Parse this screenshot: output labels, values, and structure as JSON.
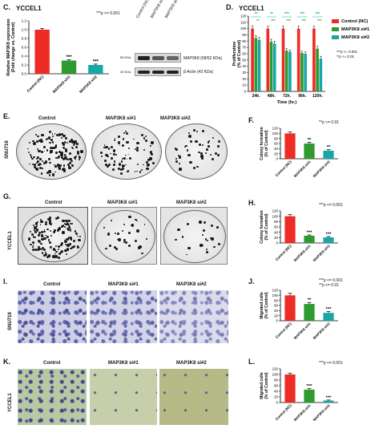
{
  "panels": {
    "c": {
      "letter": "C.",
      "title": "YCCEL1",
      "pnote": "***p <= 0.001",
      "band1": "MAP3K8 (58/52 KDa)",
      "band2": "β-Actin (42 KDa)",
      "kda1": "55 KDa",
      "kda2": "40 KDa"
    },
    "d": {
      "letter": "D.",
      "title": "YCCEL1",
      "pnote1": "***p <= 0.001",
      "pnote2": "**p <= 0.01"
    },
    "e": {
      "letter": "E.",
      "cell_line": "SNU719",
      "col1": "Control",
      "col2": "MAP3K8 si#1",
      "col3": "MAP3K8 si#2"
    },
    "f": {
      "letter": "F.",
      "pnote": "**p <= 0.01"
    },
    "g": {
      "letter": "G.",
      "cell_line": "YCCEL1",
      "col1": "Control",
      "col2": "MAP3K8 si#1",
      "col3": "MAP3K8 si#2"
    },
    "h": {
      "letter": "H.",
      "pnote": "***p <= 0.001"
    },
    "i": {
      "letter": "I.",
      "cell_line": "SNU719",
      "col1": "Control",
      "col2": "MAP3K8 si#1",
      "col3": "MAP3K8 si#2"
    },
    "j": {
      "letter": "J.",
      "pnote1": "***p <= 0.001",
      "pnote2": "**p <= 0.01"
    },
    "k": {
      "letter": "K.",
      "cell_line": "YCCEL1",
      "col1": "Control",
      "col2": "MAP3K8 si#1",
      "col3": "MAP3K8 si#2"
    },
    "l": {
      "letter": "L.",
      "pnote": "***p <= 0.001"
    }
  },
  "colors": {
    "control": "#ee2b24",
    "si1": "#2f9a2f",
    "si2": "#1aa6a6",
    "sig_teal": "#1fa5b8"
  },
  "chart_data": [
    {
      "id": "C",
      "type": "bar",
      "categories": [
        "Control (NC)",
        "MAP3K8 si#1",
        "MAP3K8 si#2"
      ],
      "values": [
        1.0,
        0.3,
        0.2
      ],
      "errors": [
        0.03,
        0.02,
        0.02
      ],
      "sig": [
        "",
        "***",
        "***"
      ],
      "ylabel": "Relative MAP3K8 expression\n(Fold change vs. Control)",
      "ylim": [
        0,
        1.2
      ],
      "yticks": [
        "0.0",
        "0.2",
        "0.4",
        "0.6",
        "0.8",
        "1.0",
        "1.2"
      ]
    },
    {
      "id": "D",
      "type": "bar",
      "categories": [
        "24h.",
        "48h.",
        "72h.",
        "96h.",
        "120h."
      ],
      "series": [
        {
          "name": "Control (NC)",
          "values": [
            100,
            100,
            100,
            100,
            100
          ],
          "errors": [
            4,
            4,
            4,
            4,
            4
          ]
        },
        {
          "name": "MAP3K8 si#1",
          "values": [
            85,
            79,
            65,
            61,
            68
          ],
          "errors": [
            4,
            4,
            3,
            3,
            4
          ]
        },
        {
          "name": "MAP3K8 si#2",
          "values": [
            82,
            76,
            63,
            60,
            52
          ],
          "errors": [
            4,
            4,
            3,
            3,
            4
          ]
        }
      ],
      "sig_top": [
        "**",
        "**",
        "***",
        "***",
        "***"
      ],
      "sig_mid": [
        "**",
        "***",
        "***",
        "***",
        "***"
      ],
      "xlabel": "Time (hr.)",
      "ylabel": "Proliferation\n(% of Control)",
      "ylim": [
        0,
        120
      ],
      "yticks": [
        "0",
        "10",
        "20",
        "30",
        "40",
        "50",
        "60",
        "70",
        "80",
        "90",
        "100",
        "110",
        "120"
      ]
    },
    {
      "id": "F",
      "type": "bar",
      "categories": [
        "Control (NC)",
        "MAP3K8 si#1",
        "MAP3K8 si#2"
      ],
      "values": [
        100,
        60,
        32
      ],
      "errors": [
        6,
        5,
        4
      ],
      "sig": [
        "",
        "**",
        "**"
      ],
      "ylabel": "Colony formation\n(% of Control)",
      "ylim": [
        0,
        120
      ],
      "yticks": [
        "0",
        "20",
        "40",
        "60",
        "80",
        "100",
        "120"
      ]
    },
    {
      "id": "H",
      "type": "bar",
      "categories": [
        "Control (NC)",
        "MAP3K8 si#1",
        "MAP3K8 si#2"
      ],
      "values": [
        100,
        27,
        21
      ],
      "errors": [
        6,
        3,
        3
      ],
      "sig": [
        "",
        "***",
        "***"
      ],
      "ylabel": "Colony formation\n(% of Control)",
      "ylim": [
        0,
        120
      ],
      "yticks": [
        "0",
        "20",
        "40",
        "60",
        "80",
        "100",
        "120"
      ]
    },
    {
      "id": "J",
      "type": "bar",
      "categories": [
        "Control (NC)",
        "MAP3K8 si#1",
        "MAP3K8 si#2"
      ],
      "values": [
        100,
        66,
        31
      ],
      "errors": [
        8,
        6,
        5
      ],
      "sig": [
        "",
        "**",
        "***"
      ],
      "ylabel": "Migrated cells\n(% of Control)",
      "ylim": [
        0,
        120
      ],
      "yticks": [
        "0",
        "20",
        "40",
        "60",
        "80",
        "100",
        "120"
      ]
    },
    {
      "id": "L",
      "type": "bar",
      "categories": [
        "Control (NC)",
        "MAP3K8 si#1",
        "MAP3K8 si#2"
      ],
      "values": [
        100,
        46,
        7
      ],
      "errors": [
        4,
        4,
        2
      ],
      "sig": [
        "",
        "***",
        "***"
      ],
      "ylabel": "Migrated cells\n(% of Control)",
      "ylim": [
        0,
        120
      ],
      "yticks": [
        "0",
        "20",
        "40",
        "60",
        "80",
        "100",
        "120"
      ]
    }
  ]
}
